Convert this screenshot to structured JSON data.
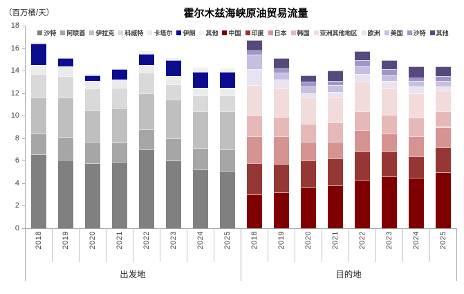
{
  "chart": {
    "unit_label": "（百万桶/天）",
    "title": "霍尔木兹海峡原油贸易流量"
  },
  "chart_data": {
    "type": "bar",
    "stacked": true,
    "title": "霍尔木兹海峡原油贸易流量",
    "ylabel": "（百万桶/天）",
    "ylim": [
      0,
      18
    ],
    "yticks": [
      0,
      2,
      4,
      6,
      8,
      10,
      12,
      14,
      16,
      18
    ],
    "grid": false,
    "legend_position": "top",
    "axis_color": "#a6a6a6",
    "groups": [
      {
        "label": "出发地",
        "categories": [
          "2018",
          "2019",
          "2020",
          "2021",
          "2022",
          "2023",
          "2024",
          "2025"
        ],
        "series": [
          {
            "name": "沙特",
            "color": "#808080",
            "values": [
              6.6,
              6.1,
              5.8,
              5.9,
              7.0,
              6.0,
              5.2,
              5.1
            ]
          },
          {
            "name": "阿联酋",
            "color": "#a6a6a6",
            "values": [
              1.8,
              2.0,
              1.9,
              1.7,
              1.8,
              2.0,
              1.9,
              1.9
            ]
          },
          {
            "name": "伊拉克",
            "color": "#bfbfbf",
            "values": [
              3.2,
              3.5,
              2.8,
              3.1,
              3.2,
              3.4,
              3.3,
              3.4
            ]
          },
          {
            "name": "科威特",
            "color": "#d9d9d9",
            "values": [
              2.1,
              1.9,
              1.9,
              1.8,
              1.8,
              1.4,
              1.4,
              1.4
            ]
          },
          {
            "name": "卡塔尔",
            "color": "#ebebeb",
            "values": [
              0.8,
              0.9,
              0.7,
              0.7,
              0.7,
              0.7,
              0.7,
              0.7
            ]
          },
          {
            "name": "伊朗",
            "color": "#0c0c8e",
            "values": [
              1.9,
              0.7,
              0.5,
              0.9,
              1.0,
              1.4,
              1.4,
              1.4
            ]
          },
          {
            "name": "其他",
            "color": "#f2f2f2",
            "values": [
              0.1,
              0.1,
              0.1,
              0.1,
              0.2,
              0.2,
              0.4,
              0.3
            ]
          }
        ]
      },
      {
        "label": "目的地",
        "categories": [
          "2018",
          "2019",
          "2020",
          "2021",
          "2022",
          "2023",
          "2024",
          "2025"
        ],
        "series": [
          {
            "name": "中国",
            "color": "#7f0000",
            "values": [
              3.0,
              3.2,
              3.6,
              3.8,
              4.3,
              4.6,
              4.5,
              5.0
            ]
          },
          {
            "name": "印度",
            "color": "#953735",
            "values": [
              2.8,
              2.5,
              2.4,
              2.4,
              2.5,
              2.2,
              1.9,
              2.2
            ]
          },
          {
            "name": "日本",
            "color": "#d59392",
            "values": [
              2.4,
              2.5,
              1.7,
              1.5,
              1.9,
              1.6,
              1.8,
              1.8
            ]
          },
          {
            "name": "韩国",
            "color": "#e5b9b7",
            "values": [
              1.8,
              1.7,
              1.6,
              1.7,
              1.7,
              1.7,
              1.6,
              1.4
            ]
          },
          {
            "name": "亚洲其他地区",
            "color": "#f2dcdb",
            "values": [
              2.7,
              2.6,
              2.3,
              2.3,
              2.6,
              2.4,
              2.2,
              1.8
            ]
          },
          {
            "name": "欧洲",
            "color": "#e7e3f1",
            "values": [
              1.4,
              0.7,
              0.4,
              0.4,
              0.7,
              0.6,
              0.6,
              0.4
            ]
          },
          {
            "name": "美国",
            "color": "#c7bfdf",
            "values": [
              1.3,
              0.6,
              0.6,
              0.6,
              0.7,
              0.5,
              0.5,
              0.5
            ]
          },
          {
            "name": "沙特",
            "color": "#a295c7",
            "values": [
              0.4,
              0.4,
              0.4,
              0.4,
              0.5,
              0.5,
              0.3,
              0.4
            ]
          },
          {
            "name": "其他",
            "color": "#564a7d",
            "values": [
              0.9,
              0.9,
              0.6,
              0.9,
              0.8,
              0.8,
              1.0,
              0.9
            ]
          }
        ]
      }
    ]
  }
}
